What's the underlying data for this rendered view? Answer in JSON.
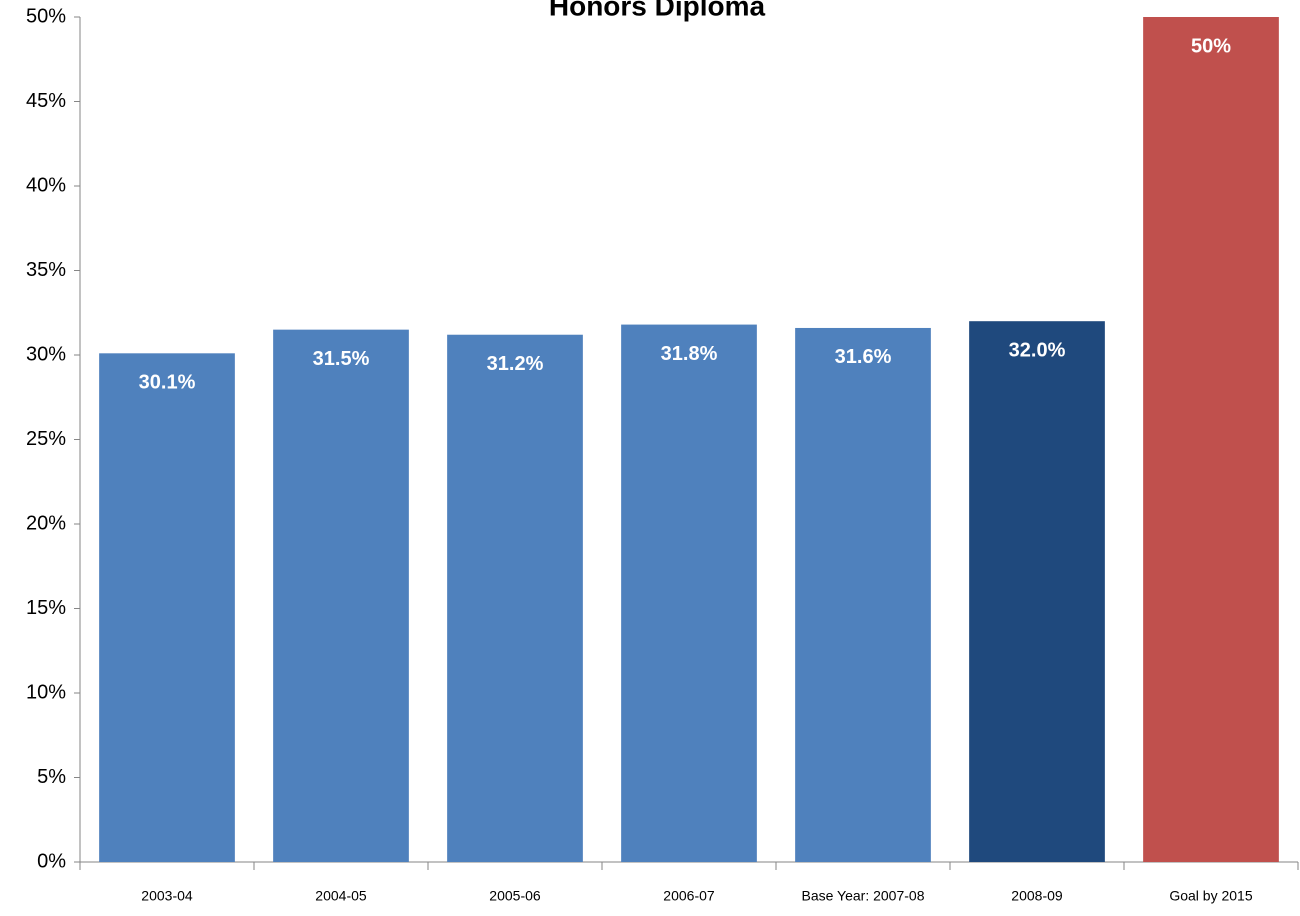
{
  "chart_data": {
    "type": "bar",
    "title": "Honors Diploma",
    "categories": [
      "2003-04",
      "2004-05",
      "2005-06",
      "2006-07",
      "Base Year: 2007-08",
      "2008-09",
      "Goal by 2015"
    ],
    "values": [
      30.1,
      31.5,
      31.2,
      31.8,
      31.6,
      32.0,
      50
    ],
    "value_labels": [
      "30.1%",
      "31.5%",
      "31.2%",
      "31.8%",
      "31.6%",
      "32.0%",
      "50%"
    ],
    "colors": [
      "#4f81bd",
      "#4f81bd",
      "#4f81bd",
      "#4f81bd",
      "#4f81bd",
      "#1f497d",
      "#c0504d"
    ],
    "ylim": [
      0,
      50
    ],
    "yticks": [
      {
        "value": 0,
        "label": "0%"
      },
      {
        "value": 5,
        "label": "5%"
      },
      {
        "value": 10,
        "label": "10%"
      },
      {
        "value": 15,
        "label": "15%"
      },
      {
        "value": 20,
        "label": "20%"
      },
      {
        "value": 25,
        "label": "25%"
      },
      {
        "value": 30,
        "label": "30%"
      },
      {
        "value": 35,
        "label": "35%"
      },
      {
        "value": 40,
        "label": "40%"
      },
      {
        "value": 45,
        "label": "45%"
      },
      {
        "value": 50,
        "label": "50%"
      }
    ],
    "grid": false
  }
}
